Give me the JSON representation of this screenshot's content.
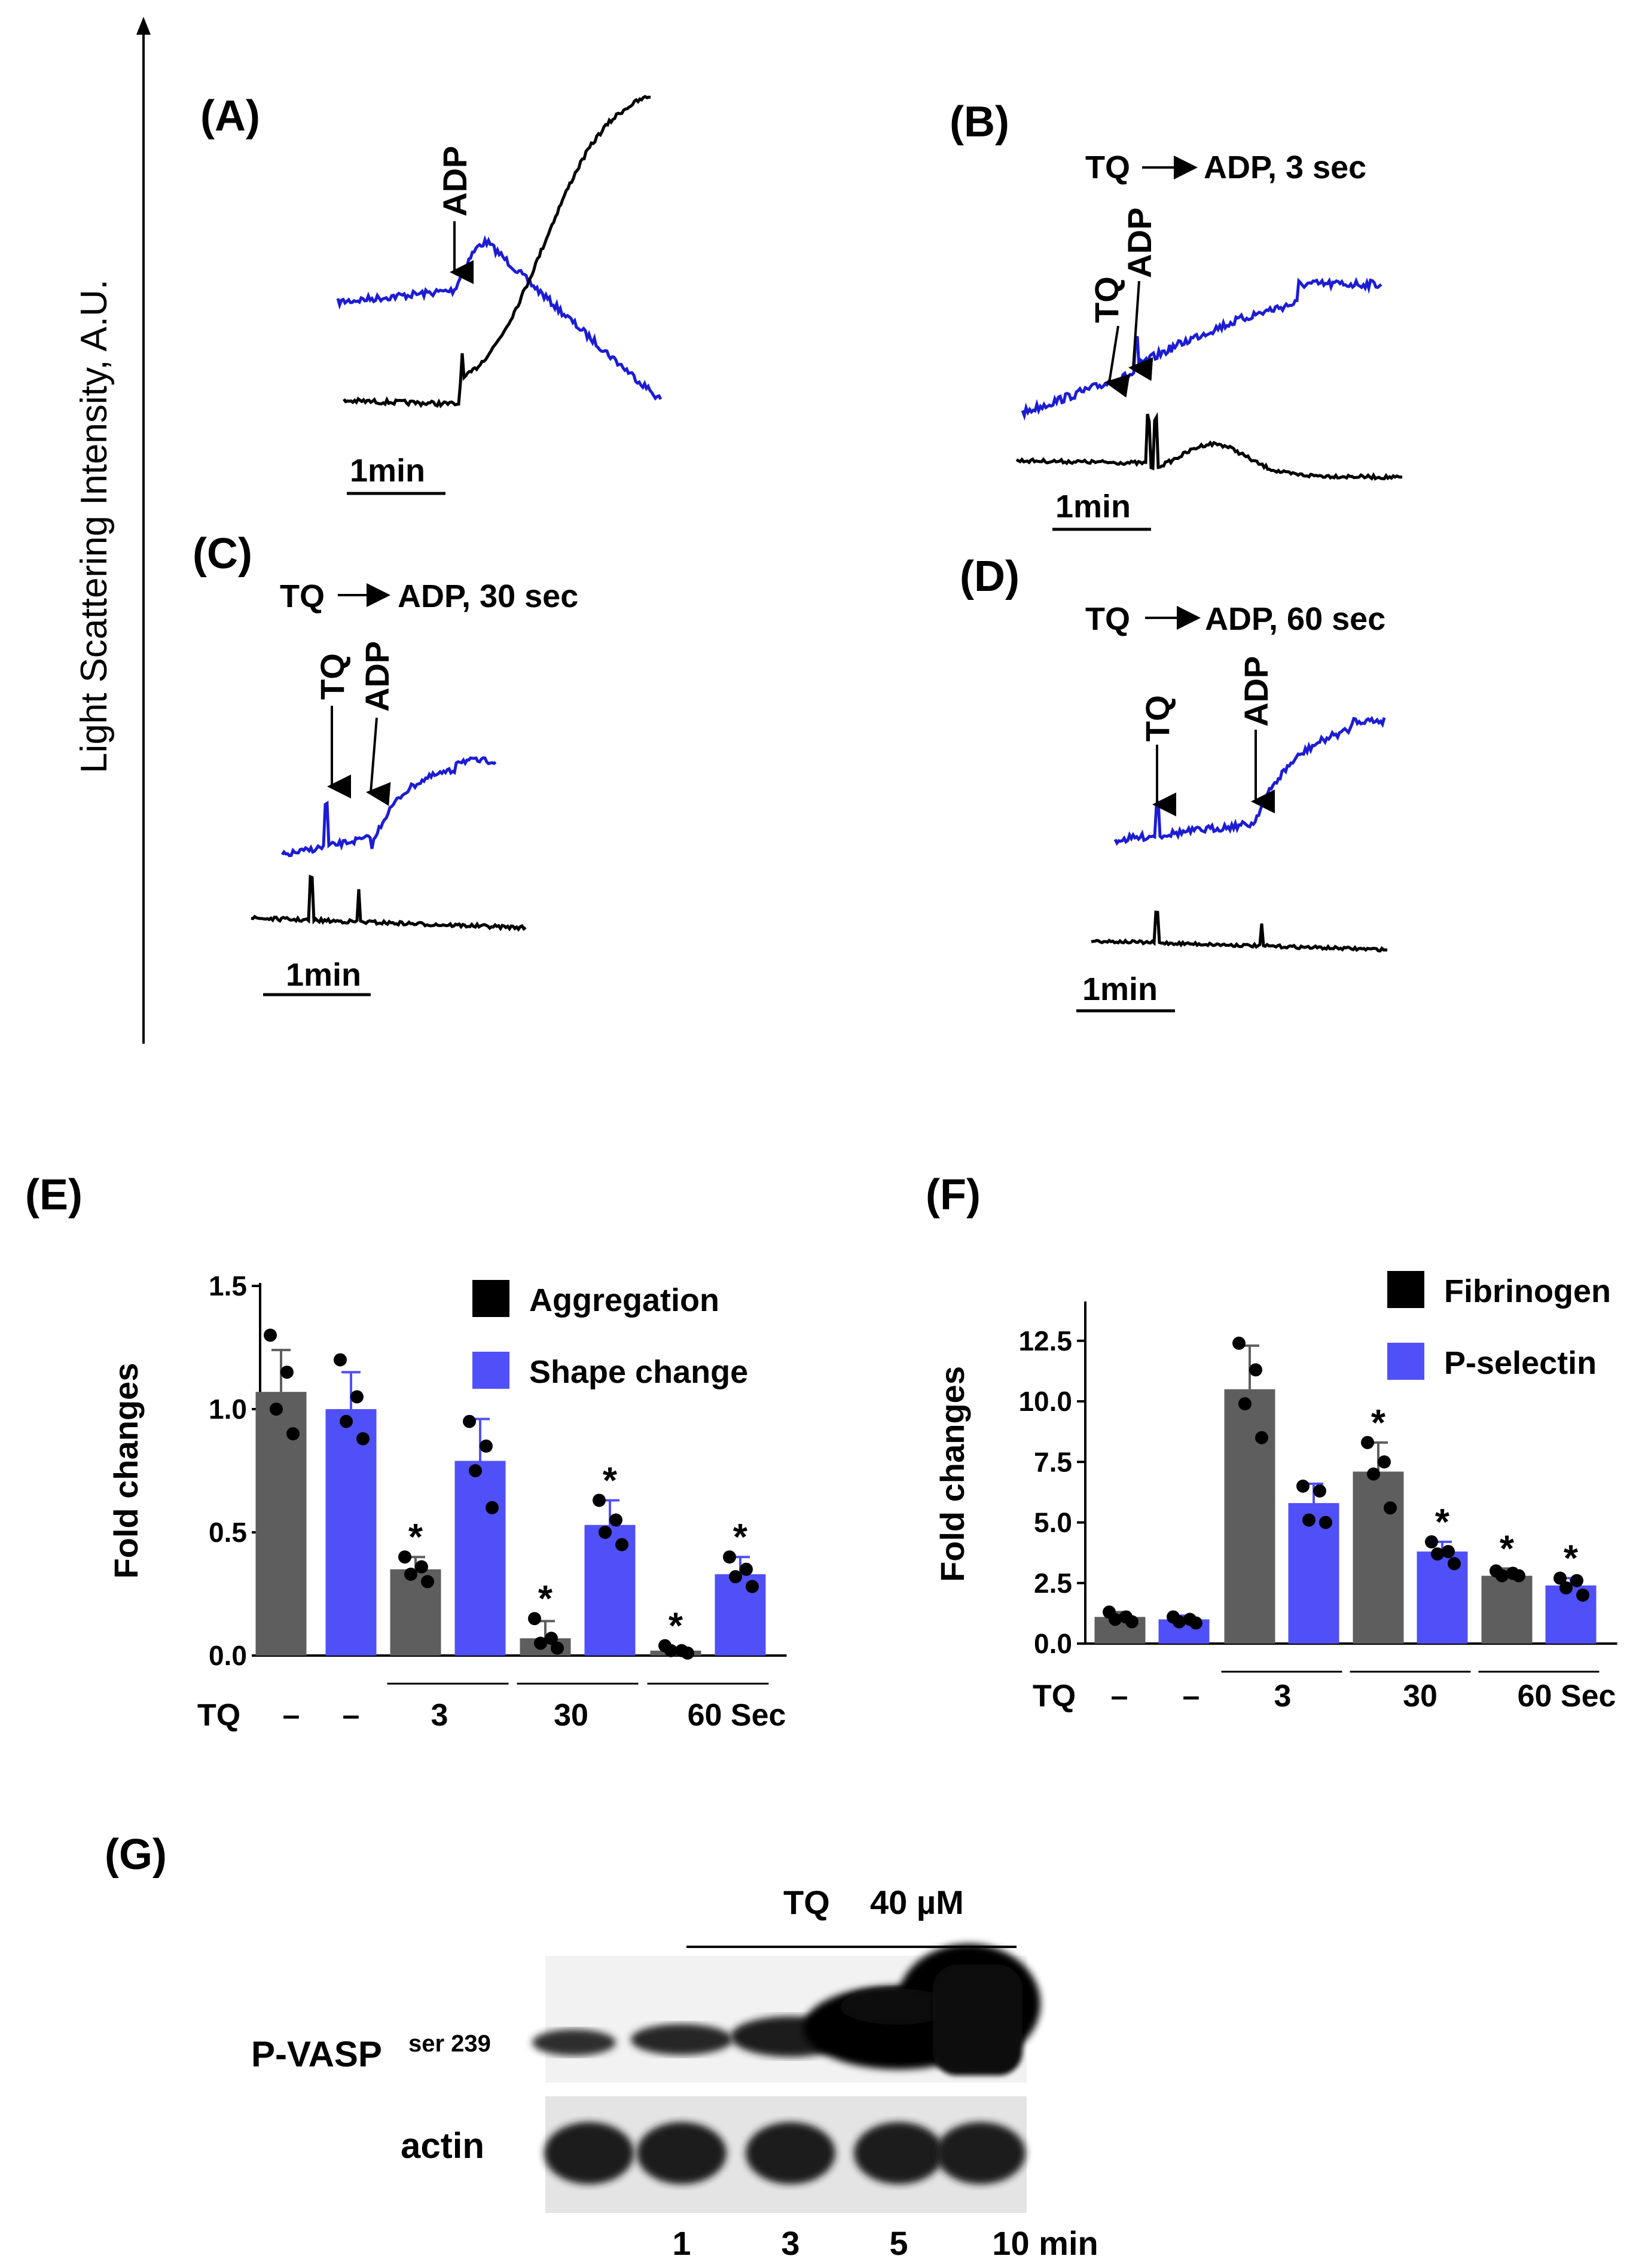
{
  "colors": {
    "blue_trace": "#1c1cd6",
    "black_trace": "#000000",
    "gray_bar": "#5e5e5e",
    "blue_bar": "#5050f8"
  },
  "traces": {
    "y_axis_label": "Light Scattering Intensity, A.U.",
    "panels": [
      {
        "id": "A",
        "label": "(A)",
        "title": "",
        "arrows": [
          "ADP"
        ],
        "scale": "1min"
      },
      {
        "id": "B",
        "label": "(B)",
        "title_parts": [
          "TQ",
          "ADP, 3 sec"
        ],
        "arrows": [
          "TQ",
          "ADP"
        ],
        "scale": "1min"
      },
      {
        "id": "C",
        "label": "(C)",
        "title_parts": [
          "TQ",
          "ADP, 30 sec"
        ],
        "arrows": [
          "TQ",
          "ADP"
        ],
        "scale": "1min"
      },
      {
        "id": "D",
        "label": "(D)",
        "title_parts": [
          "TQ",
          "ADP, 60 sec"
        ],
        "arrows": [
          "TQ",
          "ADP"
        ],
        "scale": "1min"
      }
    ]
  },
  "chart_data": [
    {
      "id": "E",
      "panel_label": "(E)",
      "type": "bar",
      "ylabel": "Fold changes",
      "xlabel_prefix": "TQ",
      "ylim": [
        0,
        1.5
      ],
      "yticks": [
        "0.0",
        "0.5",
        "1.0",
        "1.5"
      ],
      "groups": [
        "–",
        "–",
        "3",
        "30",
        "60 Sec"
      ],
      "series": [
        {
          "name": "Aggregation",
          "color": "#5e5e5e"
        },
        {
          "name": "Shape change",
          "color": "#5050f8"
        }
      ],
      "bars": [
        {
          "series": 0,
          "value": 1.07,
          "err": 0.17,
          "points": [
            1.3,
            1.15,
            1.0,
            0.9
          ],
          "sig": false
        },
        {
          "series": 1,
          "value": 1.0,
          "err": 0.15,
          "points": [
            1.2,
            1.05,
            0.95,
            0.88
          ],
          "sig": false
        },
        {
          "series": 0,
          "value": 0.35,
          "err": 0.05,
          "points": [
            0.4,
            0.36,
            0.33,
            0.3
          ],
          "sig": true
        },
        {
          "series": 1,
          "value": 0.79,
          "err": 0.17,
          "points": [
            0.95,
            0.85,
            0.75,
            0.6
          ],
          "sig": false
        },
        {
          "series": 0,
          "value": 0.07,
          "err": 0.07,
          "points": [
            0.15,
            0.07,
            0.05,
            0.03
          ],
          "sig": true
        },
        {
          "series": 1,
          "value": 0.53,
          "err": 0.1,
          "points": [
            0.63,
            0.55,
            0.5,
            0.45
          ],
          "sig": true
        },
        {
          "series": 0,
          "value": 0.02,
          "err": 0.01,
          "points": [
            0.04,
            0.02,
            0.02,
            0.01
          ],
          "sig": true
        },
        {
          "series": 1,
          "value": 0.33,
          "err": 0.07,
          "points": [
            0.4,
            0.35,
            0.32,
            0.28
          ],
          "sig": true
        }
      ]
    },
    {
      "id": "F",
      "panel_label": "(F)",
      "type": "bar",
      "ylabel": "Fold changes",
      "xlabel_prefix": "TQ",
      "ylim": [
        0,
        14
      ],
      "yticks": [
        "0.0",
        "2.5",
        "5.0",
        "7.5",
        "10.0",
        "12.5"
      ],
      "groups": [
        "–",
        "–",
        "3",
        "30",
        "60 Sec"
      ],
      "series": [
        {
          "name": "Fibrinogen",
          "color": "#5e5e5e"
        },
        {
          "name": "P-selectin",
          "color": "#5050f8"
        }
      ],
      "bars": [
        {
          "series": 0,
          "value": 1.1,
          "err": 0.2,
          "points": [
            1.3,
            1.1,
            1.0,
            0.9
          ],
          "sig": false
        },
        {
          "series": 1,
          "value": 1.0,
          "err": 0.15,
          "points": [
            1.1,
            1.0,
            0.9,
            0.85
          ],
          "sig": false
        },
        {
          "series": 0,
          "value": 10.5,
          "err": 1.8,
          "points": [
            12.4,
            11.3,
            9.9,
            8.5
          ],
          "sig": false
        },
        {
          "series": 1,
          "value": 5.8,
          "err": 0.8,
          "points": [
            6.5,
            6.3,
            5.1,
            5.0
          ],
          "sig": false
        },
        {
          "series": 0,
          "value": 7.1,
          "err": 1.2,
          "points": [
            8.3,
            7.5,
            7.0,
            5.6
          ],
          "sig": true
        },
        {
          "series": 1,
          "value": 3.8,
          "err": 0.4,
          "points": [
            4.2,
            3.8,
            3.7,
            3.3
          ],
          "sig": true
        },
        {
          "series": 0,
          "value": 2.8,
          "err": 0.3,
          "points": [
            3.0,
            2.9,
            2.8,
            2.8
          ],
          "sig": true
        },
        {
          "series": 1,
          "value": 2.4,
          "err": 0.3,
          "points": [
            2.7,
            2.6,
            2.3,
            2.0
          ],
          "sig": true
        }
      ]
    }
  ],
  "blot": {
    "panel_label": "(G)",
    "treatment": "TQ",
    "dose": "40 µM",
    "rows": [
      {
        "name": "P-VASP",
        "superscript": "ser 239",
        "intensities": [
          0.25,
          0.35,
          0.5,
          0.95,
          1.0
        ]
      },
      {
        "name": "actin",
        "superscript": "",
        "intensities": [
          0.85,
          0.85,
          0.85,
          0.85,
          0.85
        ]
      }
    ],
    "lanes": [
      "",
      "1",
      "3",
      "5",
      "10 min"
    ]
  }
}
